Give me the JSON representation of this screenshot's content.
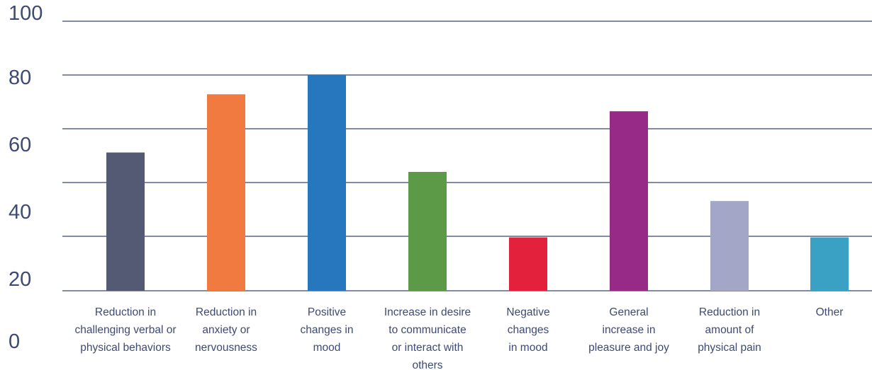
{
  "chart_data": {
    "type": "bar",
    "categories": [
      [
        "Reduction in",
        "challenging verbal or",
        "physical behaviors"
      ],
      [
        "Reduction in",
        "anxiety or",
        "nervousness"
      ],
      [
        "Positive",
        "changes in",
        "mood"
      ],
      [
        "Increase in desire",
        "to communicate",
        "or interact with",
        "others"
      ],
      [
        "Negative",
        "changes",
        "in mood"
      ],
      [
        "General",
        "increase in",
        "pleasure and joy"
      ],
      [
        "Reduction in",
        "amount of",
        "physical pain"
      ],
      [
        "Other"
      ]
    ],
    "values": [
      57,
      81,
      89,
      49,
      22,
      74,
      37,
      22
    ],
    "colors": [
      "#555a74",
      "#f07a3f",
      "#2777bf",
      "#5d9a48",
      "#e3213d",
      "#962a86",
      "#a3a6c6",
      "#3aa1c4"
    ],
    "ylim": [
      0,
      100
    ],
    "yticks": [
      100,
      80,
      60,
      40,
      20,
      0
    ],
    "grid": true,
    "title": "",
    "xlabel": "",
    "ylabel": ""
  }
}
